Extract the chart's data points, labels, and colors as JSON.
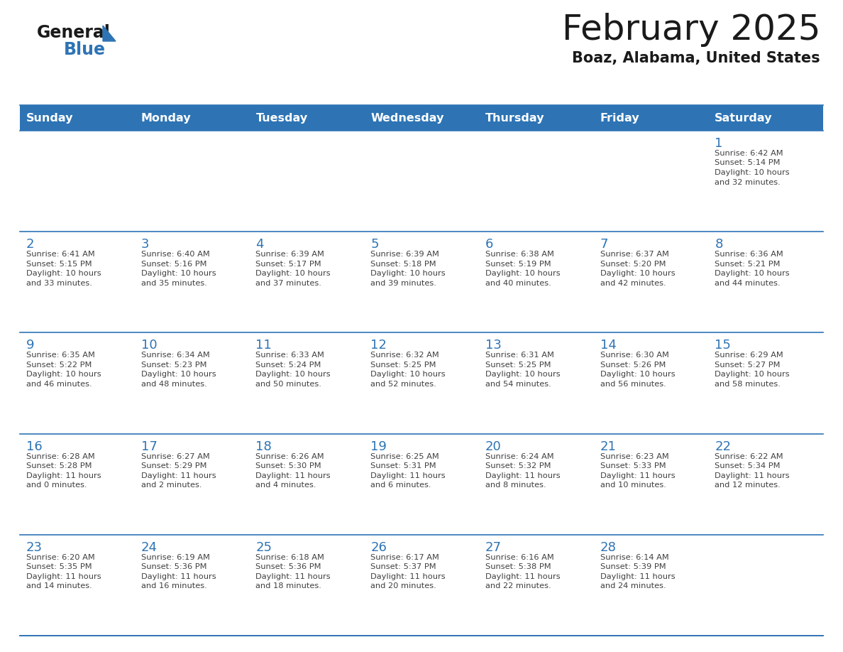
{
  "title": "February 2025",
  "subtitle": "Boaz, Alabama, United States",
  "header_bg": "#2E74B5",
  "header_text_color": "#FFFFFF",
  "cell_bg_light": "#FFFFFF",
  "cell_bg_dark": "#F0F0F0",
  "border_color": "#2E74B5",
  "text_color": "#404040",
  "day_number_color": "#2E74B5",
  "day_headers": [
    "Sunday",
    "Monday",
    "Tuesday",
    "Wednesday",
    "Thursday",
    "Friday",
    "Saturday"
  ],
  "weeks": [
    [
      {
        "day": null,
        "info": null
      },
      {
        "day": null,
        "info": null
      },
      {
        "day": null,
        "info": null
      },
      {
        "day": null,
        "info": null
      },
      {
        "day": null,
        "info": null
      },
      {
        "day": null,
        "info": null
      },
      {
        "day": 1,
        "info": "Sunrise: 6:42 AM\nSunset: 5:14 PM\nDaylight: 10 hours\nand 32 minutes."
      }
    ],
    [
      {
        "day": 2,
        "info": "Sunrise: 6:41 AM\nSunset: 5:15 PM\nDaylight: 10 hours\nand 33 minutes."
      },
      {
        "day": 3,
        "info": "Sunrise: 6:40 AM\nSunset: 5:16 PM\nDaylight: 10 hours\nand 35 minutes."
      },
      {
        "day": 4,
        "info": "Sunrise: 6:39 AM\nSunset: 5:17 PM\nDaylight: 10 hours\nand 37 minutes."
      },
      {
        "day": 5,
        "info": "Sunrise: 6:39 AM\nSunset: 5:18 PM\nDaylight: 10 hours\nand 39 minutes."
      },
      {
        "day": 6,
        "info": "Sunrise: 6:38 AM\nSunset: 5:19 PM\nDaylight: 10 hours\nand 40 minutes."
      },
      {
        "day": 7,
        "info": "Sunrise: 6:37 AM\nSunset: 5:20 PM\nDaylight: 10 hours\nand 42 minutes."
      },
      {
        "day": 8,
        "info": "Sunrise: 6:36 AM\nSunset: 5:21 PM\nDaylight: 10 hours\nand 44 minutes."
      }
    ],
    [
      {
        "day": 9,
        "info": "Sunrise: 6:35 AM\nSunset: 5:22 PM\nDaylight: 10 hours\nand 46 minutes."
      },
      {
        "day": 10,
        "info": "Sunrise: 6:34 AM\nSunset: 5:23 PM\nDaylight: 10 hours\nand 48 minutes."
      },
      {
        "day": 11,
        "info": "Sunrise: 6:33 AM\nSunset: 5:24 PM\nDaylight: 10 hours\nand 50 minutes."
      },
      {
        "day": 12,
        "info": "Sunrise: 6:32 AM\nSunset: 5:25 PM\nDaylight: 10 hours\nand 52 minutes."
      },
      {
        "day": 13,
        "info": "Sunrise: 6:31 AM\nSunset: 5:25 PM\nDaylight: 10 hours\nand 54 minutes."
      },
      {
        "day": 14,
        "info": "Sunrise: 6:30 AM\nSunset: 5:26 PM\nDaylight: 10 hours\nand 56 minutes."
      },
      {
        "day": 15,
        "info": "Sunrise: 6:29 AM\nSunset: 5:27 PM\nDaylight: 10 hours\nand 58 minutes."
      }
    ],
    [
      {
        "day": 16,
        "info": "Sunrise: 6:28 AM\nSunset: 5:28 PM\nDaylight: 11 hours\nand 0 minutes."
      },
      {
        "day": 17,
        "info": "Sunrise: 6:27 AM\nSunset: 5:29 PM\nDaylight: 11 hours\nand 2 minutes."
      },
      {
        "day": 18,
        "info": "Sunrise: 6:26 AM\nSunset: 5:30 PM\nDaylight: 11 hours\nand 4 minutes."
      },
      {
        "day": 19,
        "info": "Sunrise: 6:25 AM\nSunset: 5:31 PM\nDaylight: 11 hours\nand 6 minutes."
      },
      {
        "day": 20,
        "info": "Sunrise: 6:24 AM\nSunset: 5:32 PM\nDaylight: 11 hours\nand 8 minutes."
      },
      {
        "day": 21,
        "info": "Sunrise: 6:23 AM\nSunset: 5:33 PM\nDaylight: 11 hours\nand 10 minutes."
      },
      {
        "day": 22,
        "info": "Sunrise: 6:22 AM\nSunset: 5:34 PM\nDaylight: 11 hours\nand 12 minutes."
      }
    ],
    [
      {
        "day": 23,
        "info": "Sunrise: 6:20 AM\nSunset: 5:35 PM\nDaylight: 11 hours\nand 14 minutes."
      },
      {
        "day": 24,
        "info": "Sunrise: 6:19 AM\nSunset: 5:36 PM\nDaylight: 11 hours\nand 16 minutes."
      },
      {
        "day": 25,
        "info": "Sunrise: 6:18 AM\nSunset: 5:36 PM\nDaylight: 11 hours\nand 18 minutes."
      },
      {
        "day": 26,
        "info": "Sunrise: 6:17 AM\nSunset: 5:37 PM\nDaylight: 11 hours\nand 20 minutes."
      },
      {
        "day": 27,
        "info": "Sunrise: 6:16 AM\nSunset: 5:38 PM\nDaylight: 11 hours\nand 22 minutes."
      },
      {
        "day": 28,
        "info": "Sunrise: 6:14 AM\nSunset: 5:39 PM\nDaylight: 11 hours\nand 24 minutes."
      },
      {
        "day": null,
        "info": null
      }
    ]
  ],
  "logo_text_general": "General",
  "logo_text_blue": "Blue",
  "logo_triangle_color": "#2E74B5",
  "logo_general_color": "#1a1a1a",
  "fig_width": 11.88,
  "fig_height": 9.18,
  "dpi": 100
}
